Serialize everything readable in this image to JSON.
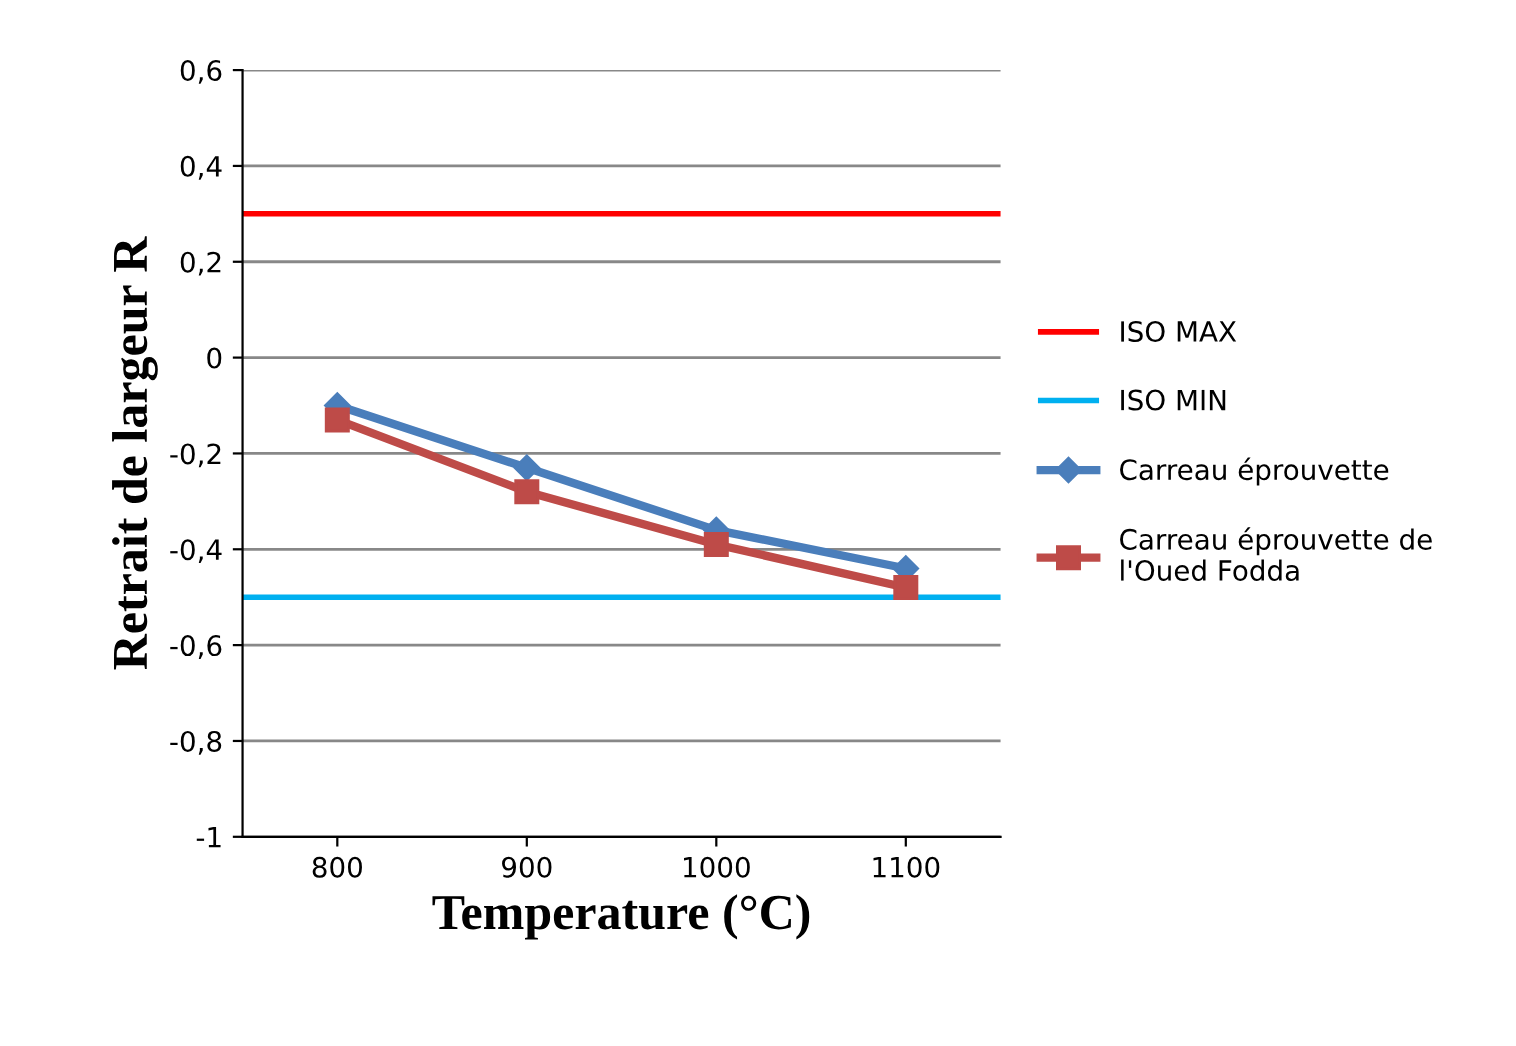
{
  "chart_data": {
    "type": "line",
    "xlabel": "Temperature (°C)",
    "ylabel": "Retrait de largeur R",
    "categories": [
      "800",
      "900",
      "1000",
      "1100"
    ],
    "series": [
      {
        "name": "Carreau éprouvette",
        "color": "#4a7ebb",
        "marker": "diamond",
        "values": [
          -0.1,
          -0.23,
          -0.36,
          -0.44
        ]
      },
      {
        "name": "Carreau éprouvette de\nl'Oued Fodda",
        "color": "#be4b48",
        "marker": "square",
        "values": [
          -0.13,
          -0.28,
          -0.39,
          -0.48
        ]
      }
    ],
    "ref_lines": [
      {
        "axis": "y",
        "value": 0.3,
        "label": "ISO MAX",
        "color": "#ff0000"
      },
      {
        "axis": "y",
        "value": -0.5,
        "label": "ISO MIN",
        "color": "#00b0f0"
      }
    ],
    "ylim": [
      -1,
      0.6
    ],
    "yticks": [
      {
        "value": -1,
        "label": "-1"
      },
      {
        "value": -0.8,
        "label": "-0,8"
      },
      {
        "value": -0.6,
        "label": "-0,6"
      },
      {
        "value": -0.4,
        "label": "-0,4"
      },
      {
        "value": -0.2,
        "label": "-0,2"
      },
      {
        "value": 0,
        "label": "0"
      },
      {
        "value": 0.2,
        "label": "0,2"
      },
      {
        "value": 0.4,
        "label": "0,4"
      },
      {
        "value": 0.6,
        "label": "0,6"
      }
    ],
    "grid": "y",
    "legend": "right"
  }
}
